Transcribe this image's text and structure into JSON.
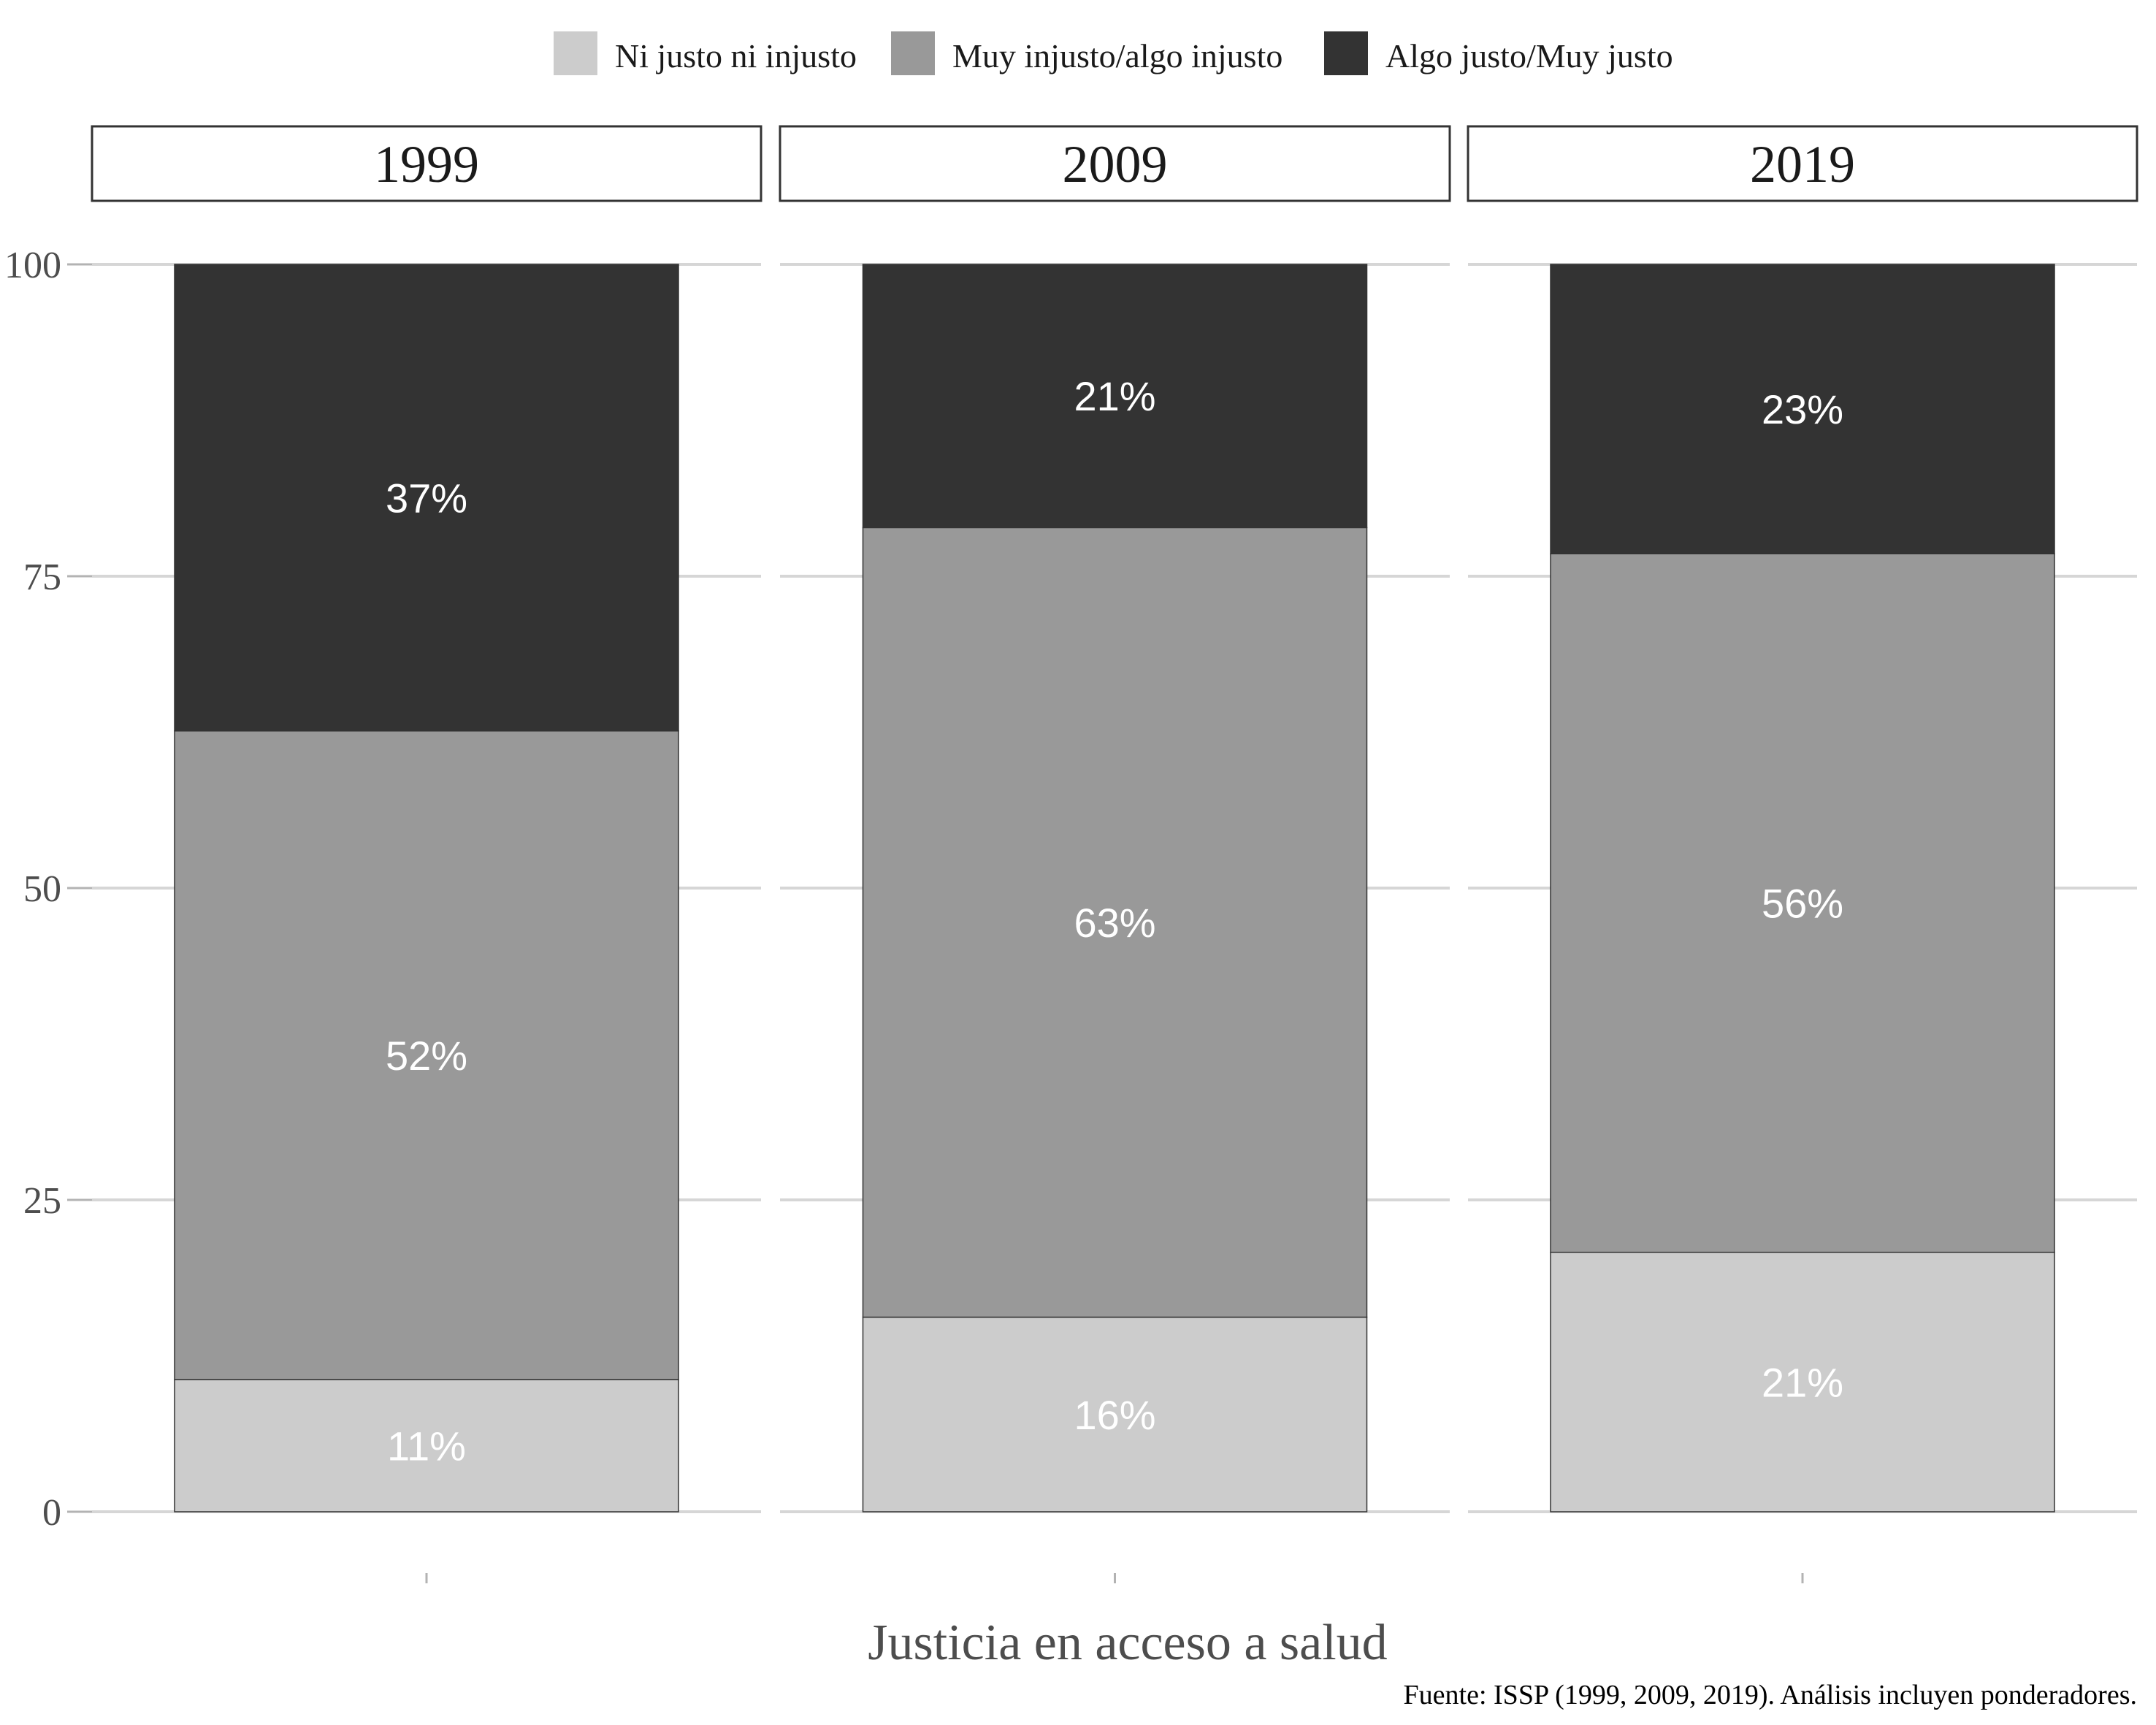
{
  "chart_data": {
    "type": "bar",
    "stacked": true,
    "facets": [
      "1999",
      "2009",
      "2019"
    ],
    "series": [
      {
        "name": "Ni justo ni injusto",
        "color": "#cccccc",
        "values": [
          10.6,
          15.6,
          20.8
        ],
        "labels": [
          "11%",
          "16%",
          "21%"
        ]
      },
      {
        "name": "Muy injusto/algo injusto",
        "color": "#999999",
        "values": [
          52.0,
          63.3,
          56.0
        ],
        "labels": [
          "52%",
          "63%",
          "56%"
        ]
      },
      {
        "name": "Algo justo/Muy justo",
        "color": "#333333",
        "values": [
          37.4,
          21.1,
          23.2
        ],
        "labels": [
          "37%",
          "21%",
          "23%"
        ]
      }
    ],
    "legend_order": [
      0,
      1,
      2
    ],
    "legend_position": "top",
    "ylim": [
      0,
      100
    ],
    "yticks": [
      "0",
      "25",
      "50",
      "75",
      "100"
    ],
    "xlabel": "Justicia en acceso a salud",
    "ylabel": "",
    "grid": true
  },
  "caption": "Fuente: ISSP (1999, 2009, 2019). Análisis incluyen ponderadores."
}
